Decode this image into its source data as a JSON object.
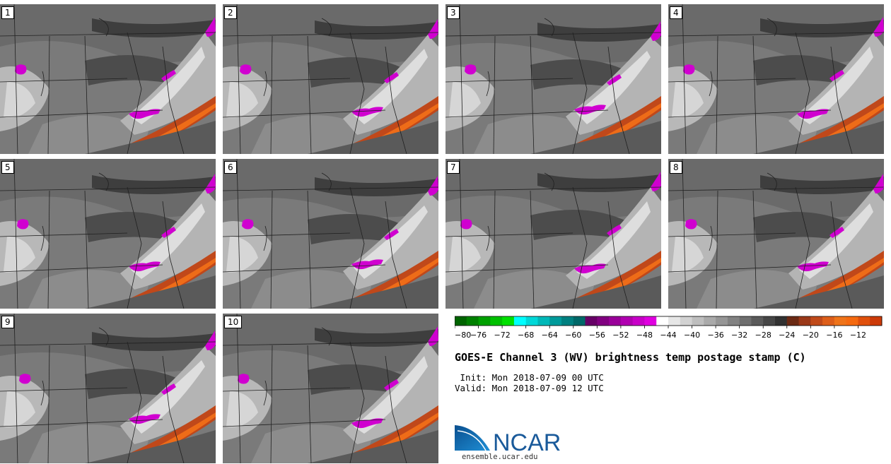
{
  "panels": [
    {
      "label": "1"
    },
    {
      "label": "2"
    },
    {
      "label": "3"
    },
    {
      "label": "4"
    },
    {
      "label": "5"
    },
    {
      "label": "6"
    },
    {
      "label": "7"
    },
    {
      "label": "8"
    },
    {
      "label": "9"
    },
    {
      "label": "10"
    }
  ],
  "colorbar": {
    "ticks": [
      "-80",
      "-76",
      "-72",
      "-68",
      "-64",
      "-60",
      "-56",
      "-52",
      "-48",
      "-44",
      "-40",
      "-36",
      "-32",
      "-28",
      "-24",
      "-20",
      "-16",
      "-12"
    ],
    "colors": [
      "#006400",
      "#008000",
      "#00a000",
      "#00c000",
      "#00e000",
      "#00ffff",
      "#00d8d8",
      "#00b8b8",
      "#009a9a",
      "#008080",
      "#006868",
      "#660066",
      "#800080",
      "#990099",
      "#b000b0",
      "#c800c8",
      "#e000e0",
      "#ffffff",
      "#e6e6e6",
      "#d2d2d2",
      "#bebebe",
      "#aaaaaa",
      "#969696",
      "#828282",
      "#6e6e6e",
      "#5a5a5a",
      "#464646",
      "#323232",
      "#6b2a14",
      "#9a3818",
      "#c04a1a",
      "#dd5e1a",
      "#ef741a",
      "#f56a10",
      "#e0500c",
      "#cc3a08"
    ]
  },
  "title": "GOES-E Channel 3 (WV) brightness temp postage stamp (C)",
  "init_line": " Init: Mon 2018-07-09 00 UTC",
  "valid_line": "Valid: Mon 2018-07-09 12 UTC",
  "logo_text": "NCAR",
  "url": "ensemble.ucar.edu"
}
